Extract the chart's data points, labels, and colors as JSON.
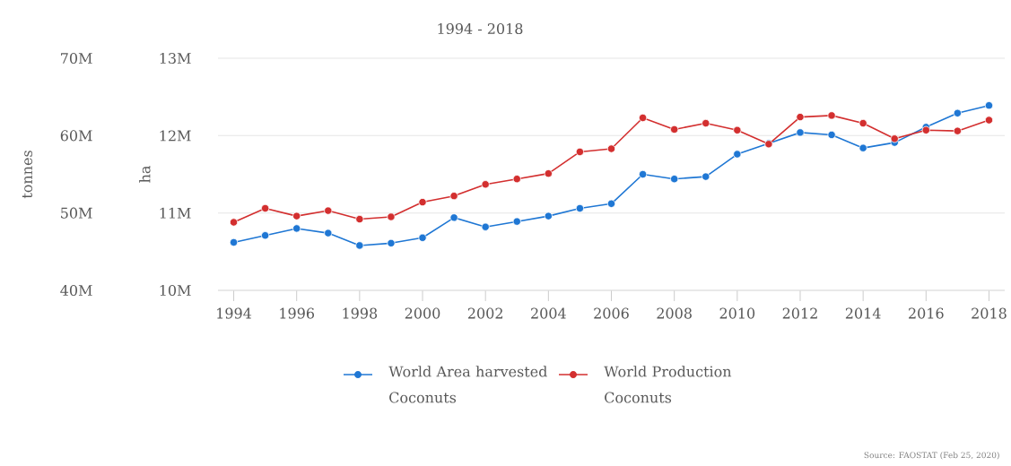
{
  "chart_data": {
    "type": "line",
    "title": "1994 - 2018",
    "ylabel": "tonnes",
    "y2label": "ha",
    "x": [
      1994,
      1995,
      1996,
      1997,
      1998,
      1999,
      2000,
      2001,
      2002,
      2003,
      2004,
      2005,
      2006,
      2007,
      2008,
      2009,
      2010,
      2011,
      2012,
      2013,
      2014,
      2015,
      2016,
      2017,
      2018
    ],
    "series": [
      {
        "name": "World Area harvested Coconuts",
        "color": "#1f77d4",
        "axis": "y2",
        "values": [
          10620000,
          10710000,
          10800000,
          10740000,
          10580000,
          10610000,
          10680000,
          10940000,
          10820000,
          10890000,
          10960000,
          11060000,
          11120000,
          11500000,
          11440000,
          11470000,
          11760000,
          11900000,
          12040000,
          12010000,
          11840000,
          11910000,
          12110000,
          12290000,
          12390000
        ]
      },
      {
        "name": "World Production Coconuts",
        "color": "#d32f2f",
        "axis": "y",
        "values": [
          48800000,
          50600000,
          49600000,
          50300000,
          49200000,
          49500000,
          51400000,
          52200000,
          53700000,
          54400000,
          55100000,
          57900000,
          58300000,
          62300000,
          60800000,
          61600000,
          60700000,
          58900000,
          62400000,
          62600000,
          61600000,
          59600000,
          60700000,
          60600000,
          62000000
        ]
      }
    ],
    "xlim": [
      1993.5,
      2018.5
    ],
    "xticks": [
      1994,
      1996,
      1998,
      2000,
      2002,
      2004,
      2006,
      2008,
      2010,
      2012,
      2014,
      2016,
      2018
    ],
    "ylim": [
      40000000,
      70000000
    ],
    "yticks": [
      {
        "value": 40000000,
        "label": "40M"
      },
      {
        "value": 50000000,
        "label": "50M"
      },
      {
        "value": 60000000,
        "label": "60M"
      },
      {
        "value": 70000000,
        "label": "70M"
      }
    ],
    "y2lim": [
      10000000,
      13000000
    ],
    "y2ticks": [
      {
        "value": 10000000,
        "label": "10M"
      },
      {
        "value": 11000000,
        "label": "11M"
      },
      {
        "value": 12000000,
        "label": "12M"
      },
      {
        "value": 13000000,
        "label": "13M"
      }
    ],
    "grid": "y",
    "legend": "bottom",
    "marker": "circle",
    "annotations": [
      "Source: FAOSTAT (Feb 25, 2020)"
    ]
  }
}
